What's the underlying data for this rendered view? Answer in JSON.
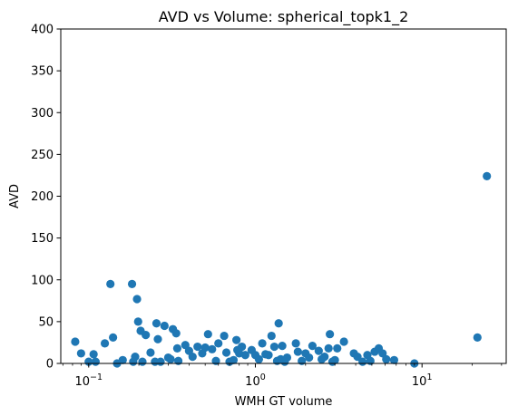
{
  "chart_data": {
    "type": "scatter",
    "title": "AVD vs Volume: spherical_topk1_2",
    "xlabel": "WMH GT volume",
    "ylabel": "AVD",
    "xscale": "log",
    "xlim": [
      0.068,
      32
    ],
    "ylim": [
      0,
      400
    ],
    "grid": false,
    "legend": "none",
    "marker_color": "#1f77b4",
    "x_major_ticks": [
      {
        "value": 0.1,
        "base": "10",
        "exp": "−1"
      },
      {
        "value": 1,
        "base": "10",
        "exp": "0"
      },
      {
        "value": 10,
        "base": "10",
        "exp": "1"
      }
    ],
    "y_ticks": [
      0,
      50,
      100,
      150,
      200,
      250,
      300,
      350,
      400
    ],
    "y_tick_labels": [
      "0",
      "50",
      "100",
      "150",
      "200",
      "250",
      "300",
      "350",
      "400"
    ],
    "series": [
      {
        "x": [
          0.083,
          0.09,
          0.1,
          0.107,
          0.11,
          0.125,
          0.135,
          0.14,
          0.148,
          0.16,
          0.182,
          0.185,
          0.19,
          0.195,
          0.198,
          0.205,
          0.21,
          0.22,
          0.235,
          0.25,
          0.255,
          0.26,
          0.27,
          0.285,
          0.3,
          0.31,
          0.32,
          0.335,
          0.34,
          0.345,
          0.38,
          0.4,
          0.42,
          0.45,
          0.48,
          0.5,
          0.52,
          0.55,
          0.58,
          0.6,
          0.65,
          0.67,
          0.7,
          0.74,
          0.77,
          0.78,
          0.8,
          0.83,
          0.87,
          0.95,
          1.0,
          1.05,
          1.1,
          1.15,
          1.2,
          1.25,
          1.3,
          1.35,
          1.38,
          1.42,
          1.45,
          1.5,
          1.55,
          1.75,
          1.8,
          1.9,
          2.0,
          2.1,
          2.2,
          2.4,
          2.5,
          2.6,
          2.75,
          2.8,
          2.9,
          3.0,
          3.1,
          3.4,
          3.9,
          4.1,
          4.4,
          4.7,
          4.9,
          5.2,
          5.5,
          5.8,
          6.1,
          6.8,
          9.0,
          21.5,
          24.5
        ],
        "y": [
          26,
          12,
          2,
          11,
          2,
          24,
          95,
          31,
          0,
          4,
          95,
          2,
          8,
          77,
          50,
          39,
          2,
          34,
          13,
          2,
          48,
          29,
          2,
          45,
          7,
          5,
          41,
          36,
          18,
          3,
          22,
          15,
          8,
          20,
          12,
          19,
          35,
          17,
          3,
          24,
          33,
          13,
          2,
          4,
          28,
          16,
          12,
          20,
          10,
          16,
          10,
          5,
          24,
          11,
          10,
          33,
          20,
          3,
          48,
          5,
          21,
          2,
          7,
          24,
          14,
          3,
          12,
          7,
          21,
          15,
          5,
          8,
          18,
          35,
          2,
          4,
          18,
          26,
          12,
          8,
          2,
          10,
          3,
          14,
          18,
          12,
          5,
          4,
          0,
          31,
          224
        ]
      }
    ]
  }
}
